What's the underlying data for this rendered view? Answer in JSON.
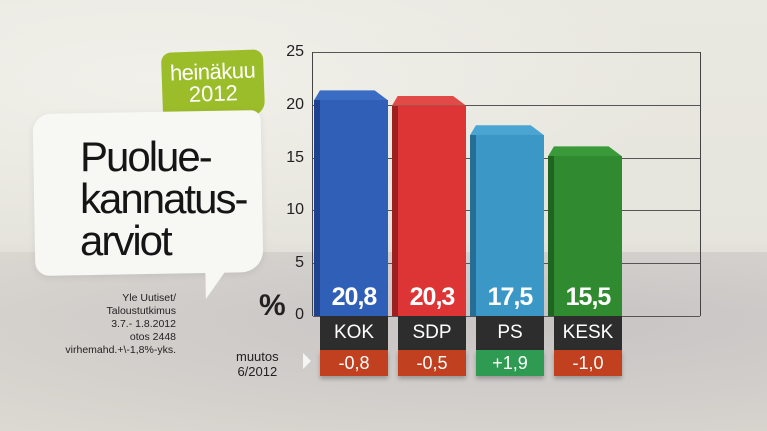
{
  "header": {
    "month_badge": {
      "line1": "heinäkuu",
      "line2": "2012"
    },
    "title_lines": [
      "Puolue-",
      "kannatus-",
      "arviot"
    ]
  },
  "source": {
    "lines": [
      "Yle Uutiset/",
      "Taloustutkimus",
      "3.7.- 1.8.2012",
      "otos 2448",
      "virhemahd.+\\-1,8%-yks."
    ]
  },
  "axis": {
    "unit_symbol": "%",
    "ticks": [
      "25",
      "20",
      "15",
      "10",
      "5",
      "0"
    ]
  },
  "change_label": {
    "line1": "muutos",
    "line2": "6/2012"
  },
  "bars": [
    {
      "party": "KOK",
      "value": "20,8",
      "change": "-0,8",
      "color": "#2f5fb6",
      "side": "#1f4290",
      "top": "#3a6cc4",
      "change_color": "#c0401f"
    },
    {
      "party": "SDP",
      "value": "20,3",
      "change": "-0,5",
      "color": "#dd3535",
      "side": "#9e1f1f",
      "top": "#e24a48",
      "change_color": "#c0401f"
    },
    {
      "party": "PS",
      "value": "17,5",
      "change": "+1,9",
      "color": "#3b97c6",
      "side": "#256f96",
      "top": "#4aa5d2",
      "change_color": "#2f9a52"
    },
    {
      "party": "KESK",
      "value": "15,5",
      "change": "-1,0",
      "color": "#2f8a30",
      "side": "#1f6420",
      "top": "#3a9a3a",
      "change_color": "#c0401f"
    }
  ],
  "chart_data": {
    "type": "bar",
    "title": "Puoluekannatusarviot heinäkuu 2012",
    "categories": [
      "KOK",
      "SDP",
      "PS",
      "KESK"
    ],
    "series": [
      {
        "name": "Kannatus %",
        "values": [
          20.8,
          20.3,
          17.5,
          15.5
        ]
      },
      {
        "name": "Muutos 6/2012",
        "values": [
          -0.8,
          -0.5,
          1.9,
          -1.0
        ]
      }
    ],
    "xlabel": "",
    "ylabel": "%",
    "ylim": [
      0,
      25
    ],
    "yticks": [
      0,
      5,
      10,
      15,
      20,
      25
    ],
    "grid": true,
    "legend": "none",
    "source": "Yle Uutiset/Taloustutkimus 3.7.-1.8.2012, otos 2448, virhemahd. +\\-1,8%-yks."
  }
}
